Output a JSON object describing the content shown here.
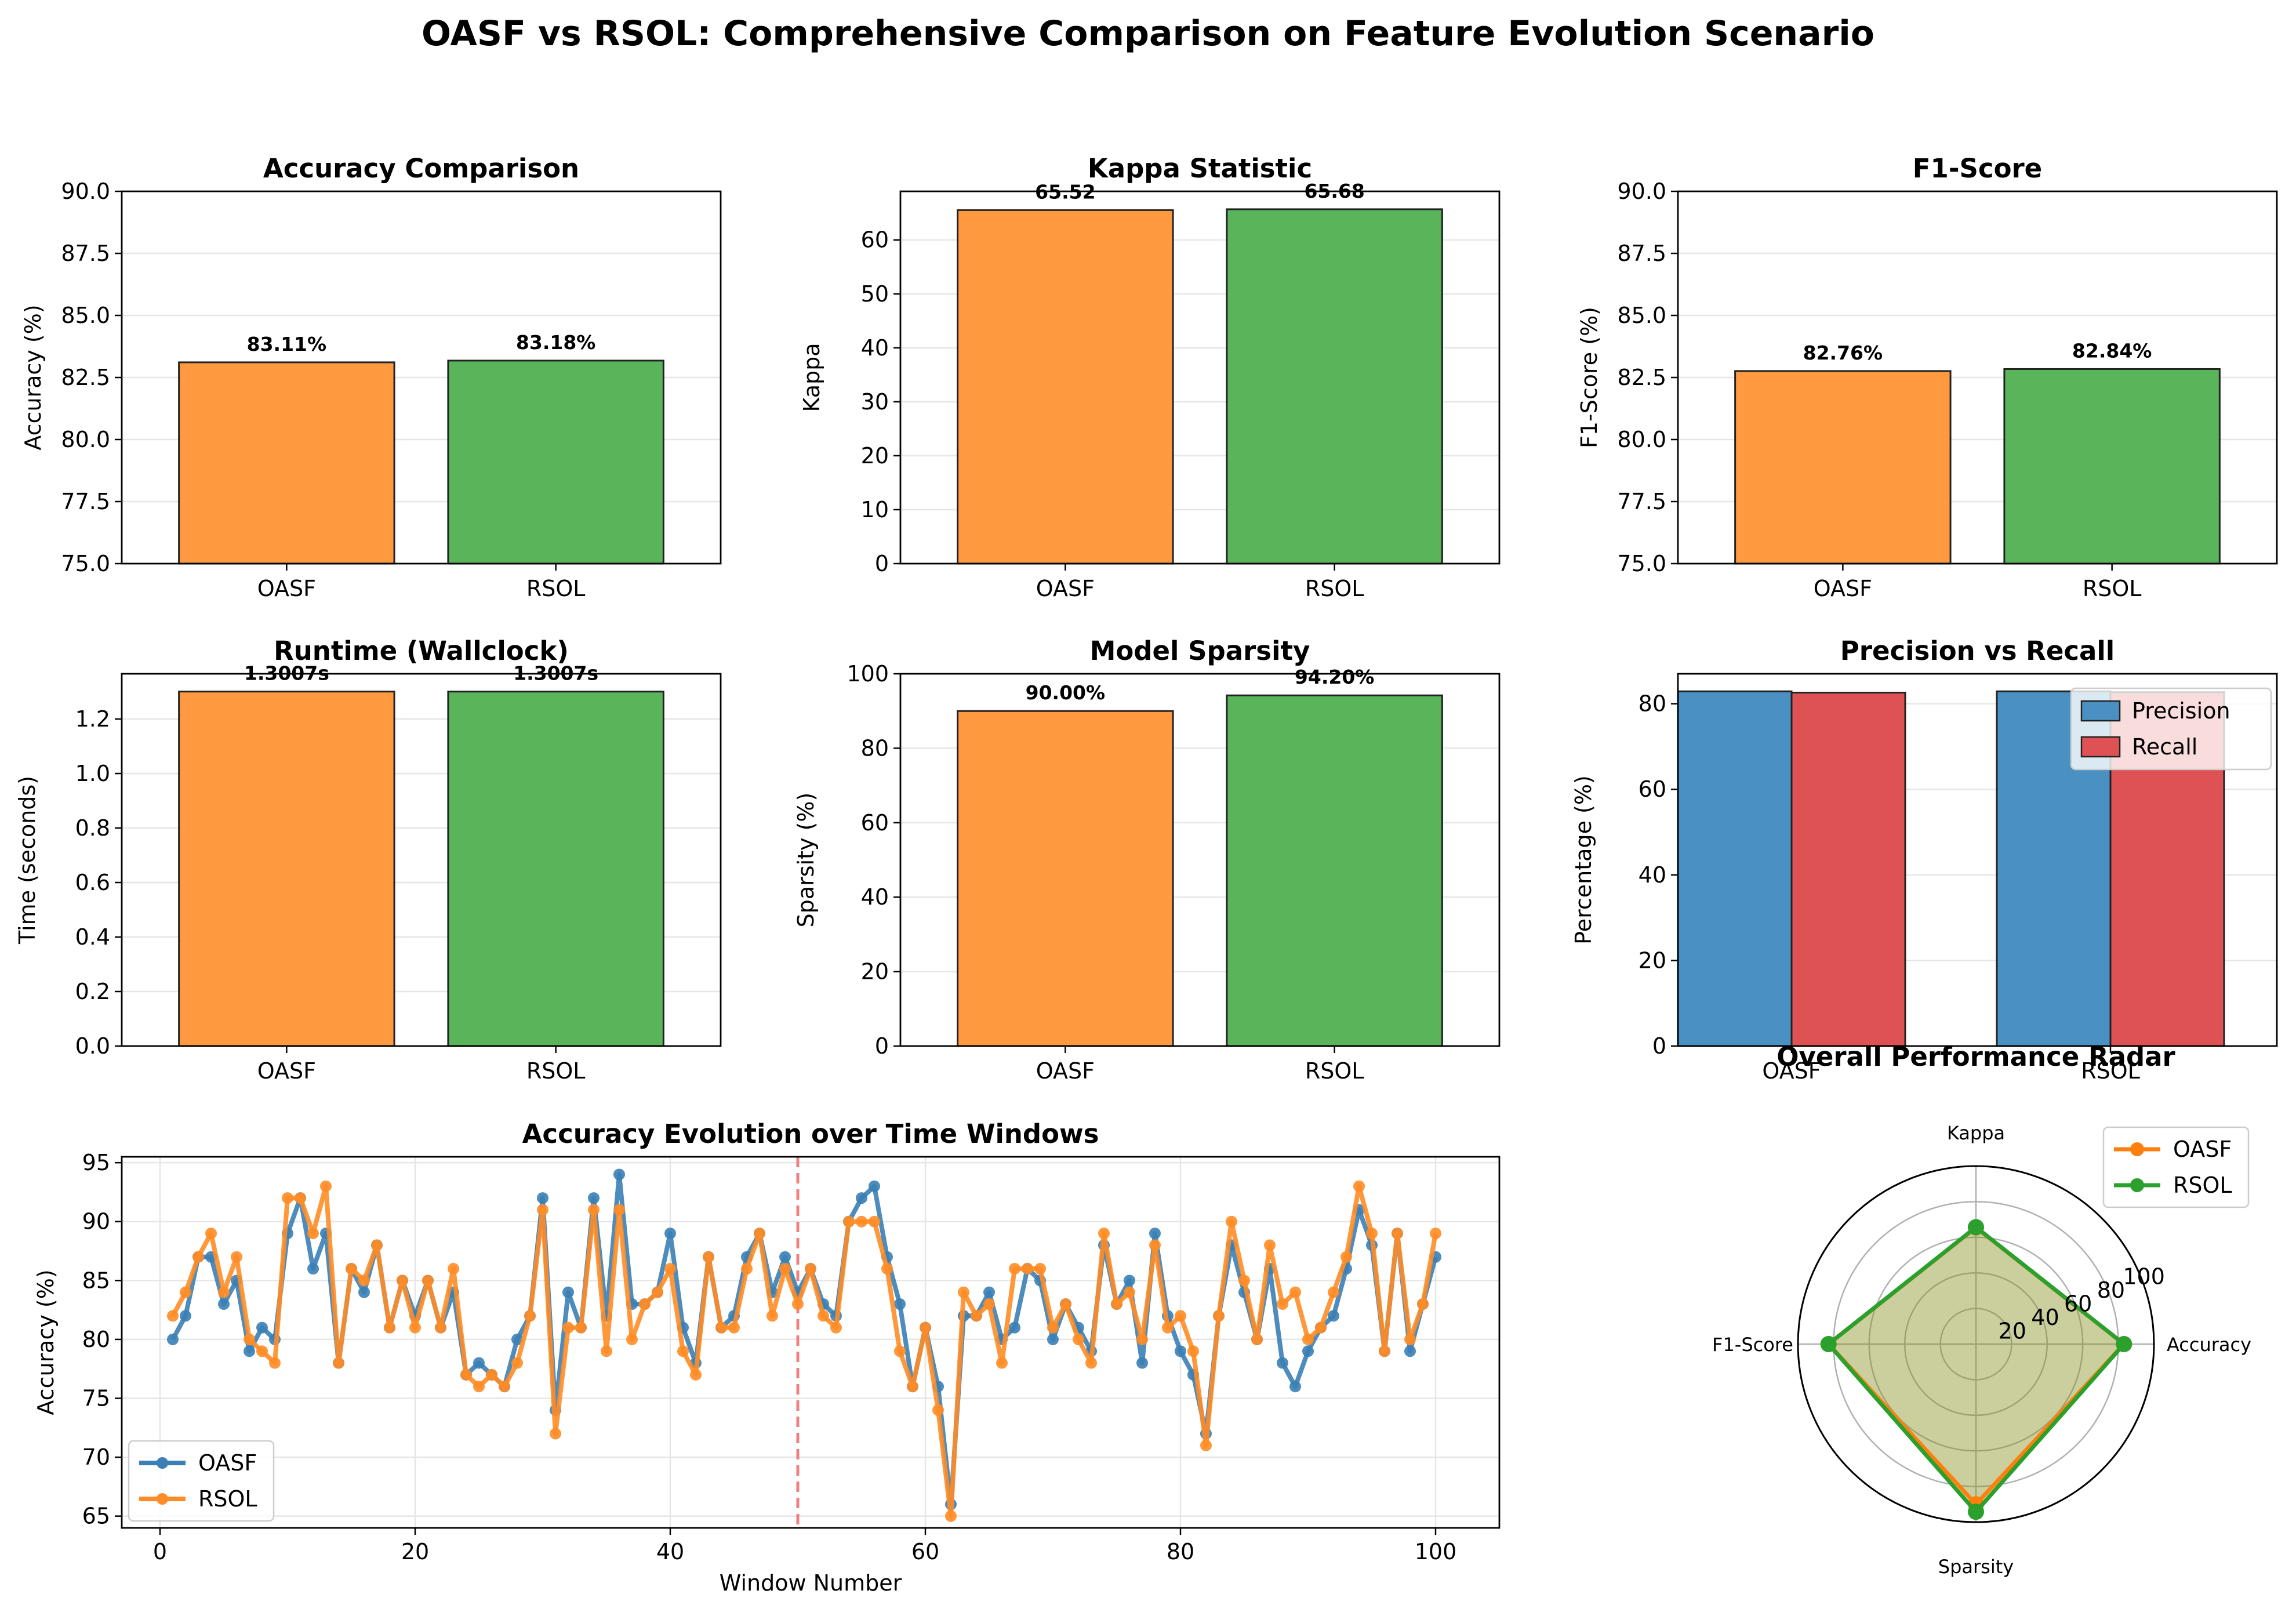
{
  "title": "OASF vs RSOL: Comprehensive Comparison on Feature Evolution Scenario",
  "colors": {
    "oasf": "#ff8c26",
    "rsol": "#3b9f3b",
    "bar_oasf": "#ff9a40",
    "bar_rsol": "#5ab55a",
    "precision": "#4a90c2",
    "recall": "#de5253",
    "vline": "#f08080"
  },
  "chart_data": [
    {
      "id": "accuracy",
      "type": "bar",
      "title": "Accuracy Comparison",
      "ylabel": "Accuracy (%)",
      "categories": [
        "OASF",
        "RSOL"
      ],
      "values": [
        83.11,
        83.18
      ],
      "value_labels": [
        "83.11%",
        "83.18%"
      ],
      "ylim": [
        75,
        90
      ],
      "yticks": [
        "75.0",
        "77.5",
        "80.0",
        "82.5",
        "85.0",
        "87.5",
        "90.0"
      ],
      "grid": "y"
    },
    {
      "id": "kappa",
      "type": "bar",
      "title": "Kappa Statistic",
      "ylabel": "Kappa",
      "categories": [
        "OASF",
        "RSOL"
      ],
      "values": [
        65.52,
        65.68
      ],
      "value_labels": [
        "65.52",
        "65.68"
      ],
      "ylim": [
        0,
        69
      ],
      "yticks": [
        "0",
        "10",
        "20",
        "30",
        "40",
        "50",
        "60"
      ],
      "grid": "y"
    },
    {
      "id": "f1",
      "type": "bar",
      "title": "F1-Score",
      "ylabel": "F1-Score (%)",
      "categories": [
        "OASF",
        "RSOL"
      ],
      "values": [
        82.76,
        82.84
      ],
      "value_labels": [
        "82.76%",
        "82.84%"
      ],
      "ylim": [
        75,
        90
      ],
      "yticks": [
        "75.0",
        "77.5",
        "80.0",
        "82.5",
        "85.0",
        "87.5",
        "90.0"
      ],
      "grid": "y"
    },
    {
      "id": "runtime",
      "type": "bar",
      "title": "Runtime (Wallclock)",
      "ylabel": "Time (seconds)",
      "categories": [
        "OASF",
        "RSOL"
      ],
      "values": [
        1.3007,
        1.3007
      ],
      "value_labels": [
        "1.3007s",
        "1.3007s"
      ],
      "ylim": [
        0,
        1.366
      ],
      "yticks": [
        "0.0",
        "0.2",
        "0.4",
        "0.6",
        "0.8",
        "1.0",
        "1.2"
      ],
      "grid": "y"
    },
    {
      "id": "sparsity",
      "type": "bar",
      "title": "Model Sparsity",
      "ylabel": "Sparsity (%)",
      "categories": [
        "OASF",
        "RSOL"
      ],
      "values": [
        90.0,
        94.2
      ],
      "value_labels": [
        "90.00%",
        "94.20%"
      ],
      "ylim": [
        0,
        100
      ],
      "yticks": [
        "0",
        "20",
        "40",
        "60",
        "80",
        "100"
      ],
      "grid": "y"
    },
    {
      "id": "precision_recall",
      "type": "bar",
      "title": "Precision vs Recall",
      "ylabel": "Percentage (%)",
      "categories": [
        "OASF",
        "RSOL"
      ],
      "series": [
        {
          "name": "Precision",
          "values": [
            82.9,
            82.9
          ]
        },
        {
          "name": "Recall",
          "values": [
            82.6,
            82.7
          ]
        }
      ],
      "ylim": [
        0,
        87
      ],
      "yticks": [
        "0",
        "20",
        "40",
        "60",
        "80"
      ],
      "legend": "top-right",
      "grid": "y"
    },
    {
      "id": "evolution",
      "type": "line",
      "title": "Accuracy Evolution over Time Windows",
      "xlabel": "Window Number",
      "ylabel": "Accuracy (%)",
      "xlim": [
        -3,
        105
      ],
      "ylim": [
        64,
        95.5
      ],
      "xticks": [
        "0",
        "20",
        "40",
        "60",
        "80",
        "100"
      ],
      "yticks": [
        "65",
        "70",
        "75",
        "80",
        "85",
        "90",
        "95"
      ],
      "drift_window": 50,
      "legend": "lower-left",
      "grid": "both",
      "series": [
        {
          "name": "OASF",
          "values": [
            80,
            82,
            87,
            87,
            83,
            85,
            79,
            81,
            80,
            89,
            92,
            86,
            89,
            78,
            86,
            84,
            88,
            81,
            85,
            82,
            85,
            81,
            84,
            77,
            78,
            77,
            76,
            80,
            82,
            92,
            74,
            84,
            81,
            92,
            82,
            94,
            83,
            83,
            84,
            89,
            81,
            78,
            87,
            81,
            82,
            87,
            89,
            84,
            87,
            84,
            86,
            83,
            82,
            90,
            92,
            93,
            87,
            83,
            76,
            81,
            76,
            66,
            82,
            82,
            84,
            80,
            81,
            86,
            85,
            80,
            83,
            81,
            79,
            88,
            83,
            85,
            78,
            89,
            82,
            79,
            77,
            72,
            82,
            88,
            84,
            80,
            86,
            78,
            76,
            79,
            81,
            82,
            86,
            91,
            88,
            79,
            89,
            79,
            83,
            87
          ]
        },
        {
          "name": "RSOL",
          "values": [
            82,
            84,
            87,
            89,
            84,
            87,
            80,
            79,
            78,
            92,
            92,
            89,
            93,
            78,
            86,
            85,
            88,
            81,
            85,
            81,
            85,
            81,
            86,
            77,
            76,
            77,
            76,
            78,
            82,
            91,
            72,
            81,
            81,
            91,
            79,
            91,
            80,
            83,
            84,
            86,
            79,
            77,
            87,
            81,
            81,
            86,
            89,
            82,
            86,
            83,
            86,
            82,
            81,
            90,
            90,
            90,
            86,
            79,
            76,
            81,
            74,
            65,
            84,
            82,
            83,
            78,
            86,
            86,
            86,
            81,
            83,
            80,
            78,
            89,
            83,
            84,
            80,
            88,
            81,
            82,
            79,
            71,
            82,
            90,
            85,
            80,
            88,
            83,
            84,
            80,
            81,
            84,
            87,
            93,
            89,
            79,
            89,
            80,
            83,
            89
          ]
        }
      ]
    },
    {
      "id": "radar",
      "type": "radar",
      "title": "Overall Performance Radar",
      "axes": [
        "Accuracy",
        "Kappa",
        "F1-Score",
        "Sparsity"
      ],
      "rlim": [
        0,
        100
      ],
      "rticks": [
        "20",
        "40",
        "60",
        "80",
        "100"
      ],
      "legend": "top-right",
      "series": [
        {
          "name": "OASF",
          "values": [
            83.11,
            65.52,
            82.76,
            90.0
          ]
        },
        {
          "name": "RSOL",
          "values": [
            83.18,
            65.68,
            82.84,
            94.2
          ]
        }
      ]
    }
  ]
}
